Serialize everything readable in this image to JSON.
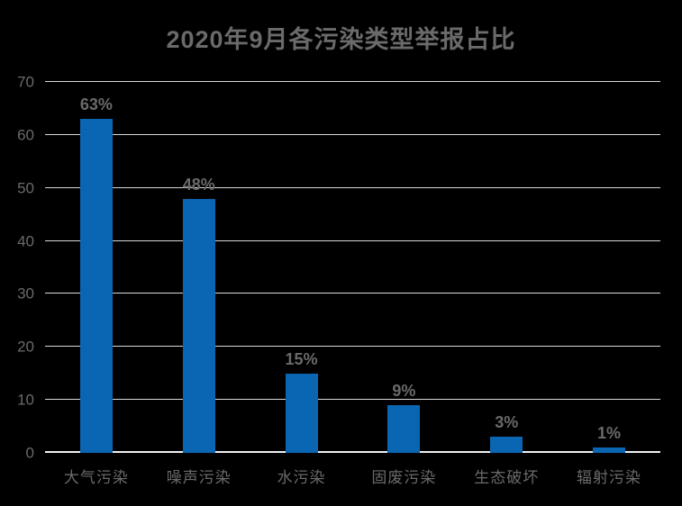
{
  "title": "2020年9月各污染类型举报占比",
  "colors": {
    "background": "#000000",
    "bar": "#0A66B2",
    "grid": "#D9D9D9",
    "axis_line": "#F0F0F0",
    "text": "#6A6A6A"
  },
  "chart_data": {
    "type": "bar",
    "title": "2020年9月各污染类型举报占比",
    "categories": [
      "大气污染",
      "噪声污染",
      "水污染",
      "固废污染",
      "生态破坏",
      "辐射污染"
    ],
    "values": [
      63,
      48,
      15,
      9,
      3,
      1
    ],
    "value_labels": [
      "63%",
      "48%",
      "15%",
      "9%",
      "3%",
      "1%"
    ],
    "xlabel": "",
    "ylabel": "",
    "ylim": [
      0,
      70
    ],
    "yticks": [
      0,
      10,
      20,
      30,
      40,
      50,
      60,
      70
    ],
    "grid": true,
    "legend": false,
    "bar_color": "#0A66B2"
  }
}
